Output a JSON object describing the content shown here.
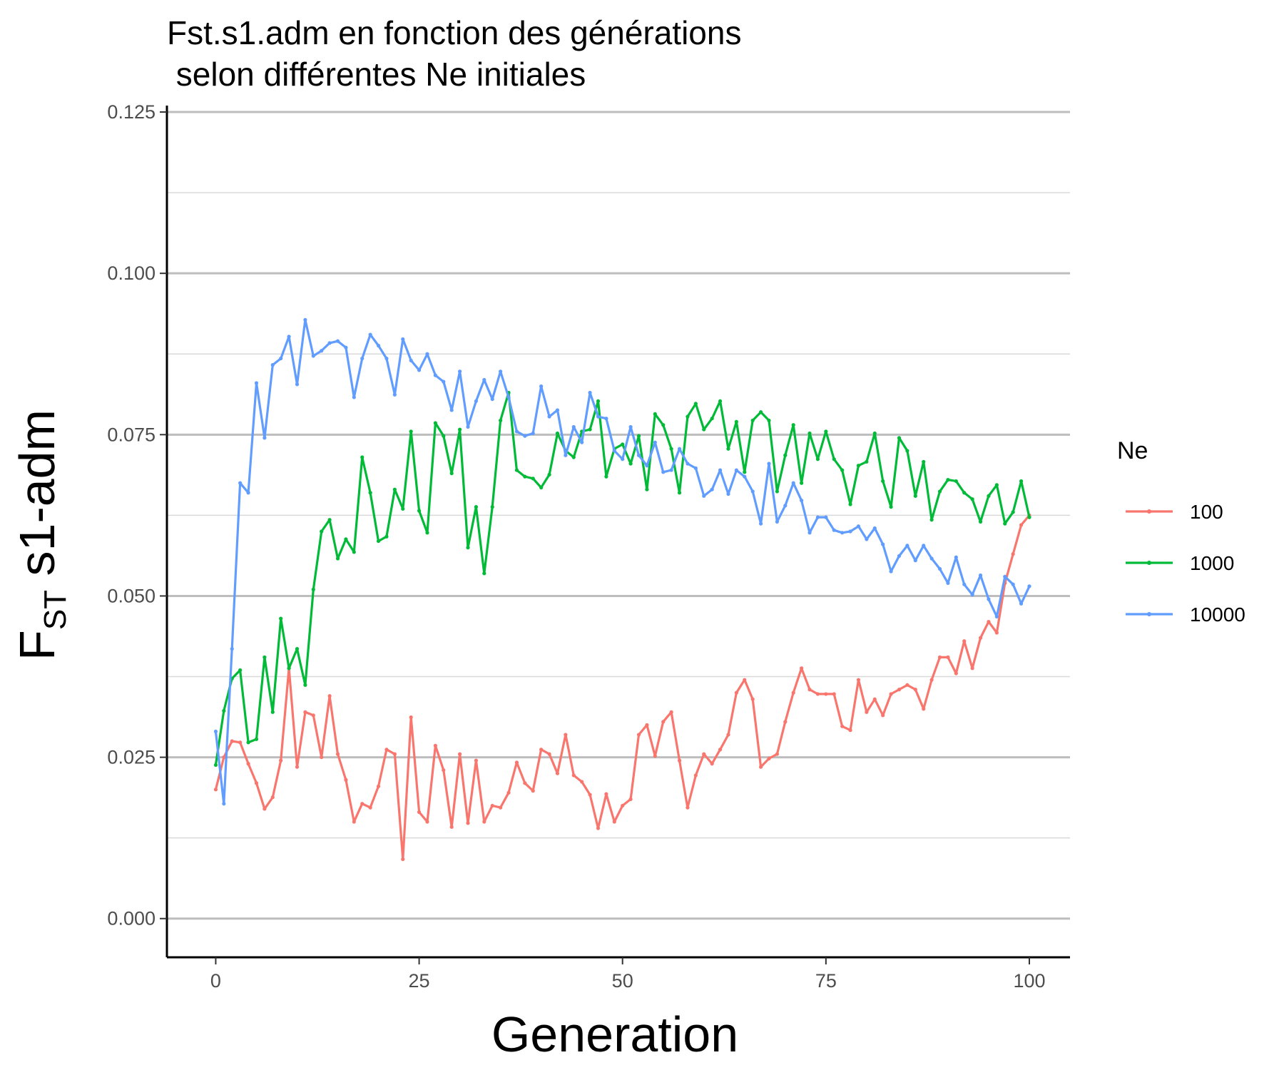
{
  "chart_data": {
    "type": "line",
    "title_line1": "Fst.s1.adm en fonction des générations",
    "title_line2": " selon différentes Ne initiales",
    "xlabel": "Generation",
    "ylabel_main": "F",
    "ylabel_sub": "ST",
    "ylabel_rest": " s1-adm",
    "xlim": [
      -6,
      105
    ],
    "ylim": [
      -0.006,
      0.126
    ],
    "x_ticks": [
      0,
      25,
      50,
      75,
      100
    ],
    "x_tick_labels": [
      "0",
      "25",
      "50",
      "75",
      "100"
    ],
    "y_ticks": [
      0,
      0.025,
      0.05,
      0.075,
      0.1,
      0.125
    ],
    "y_tick_labels": [
      "0.000",
      "0.025",
      "0.050",
      "0.075",
      "0.100",
      "0.125"
    ],
    "grid_major_y": true,
    "grid_minor_y": true,
    "legend_title": "Ne",
    "legend_position": "right",
    "series": [
      {
        "name": "100",
        "color": "#F8766D",
        "values": [
          0.02,
          0.025,
          0.0275,
          0.0273,
          0.024,
          0.021,
          0.017,
          0.0188,
          0.0245,
          0.0388,
          0.0235,
          0.032,
          0.0315,
          0.025,
          0.0345,
          0.0255,
          0.0215,
          0.015,
          0.0178,
          0.0172,
          0.0205,
          0.0262,
          0.0255,
          0.0092,
          0.0312,
          0.0165,
          0.015,
          0.0268,
          0.023,
          0.0142,
          0.0255,
          0.0148,
          0.0245,
          0.015,
          0.0175,
          0.0172,
          0.0195,
          0.0242,
          0.021,
          0.0198,
          0.0262,
          0.0255,
          0.0225,
          0.0285,
          0.0222,
          0.0212,
          0.0192,
          0.014,
          0.0193,
          0.015,
          0.0175,
          0.0185,
          0.0285,
          0.03,
          0.0252,
          0.0305,
          0.032,
          0.0245,
          0.0172,
          0.0222,
          0.0255,
          0.024,
          0.0262,
          0.0285,
          0.035,
          0.037,
          0.034,
          0.0235,
          0.0248,
          0.0255,
          0.0305,
          0.035,
          0.0388,
          0.0355,
          0.0348,
          0.0348,
          0.0348,
          0.0298,
          0.0292,
          0.037,
          0.032,
          0.034,
          0.0315,
          0.0348,
          0.0355,
          0.0362,
          0.0355,
          0.0325,
          0.037,
          0.0405,
          0.0405,
          0.038,
          0.043,
          0.0388,
          0.0435,
          0.046,
          0.0443,
          0.052,
          0.0565,
          0.061,
          0.0625
        ]
      },
      {
        "name": "1000",
        "color": "#00BA38",
        "values": [
          0.0238,
          0.0322,
          0.0372,
          0.0385,
          0.0273,
          0.0278,
          0.0405,
          0.032,
          0.0465,
          0.0388,
          0.0418,
          0.0362,
          0.051,
          0.06,
          0.0618,
          0.0558,
          0.0588,
          0.0568,
          0.0715,
          0.066,
          0.0585,
          0.0592,
          0.0665,
          0.0635,
          0.0755,
          0.0632,
          0.0598,
          0.0768,
          0.0748,
          0.069,
          0.0758,
          0.0575,
          0.0638,
          0.0535,
          0.0638,
          0.0772,
          0.0815,
          0.0695,
          0.0685,
          0.0682,
          0.0668,
          0.0688,
          0.0752,
          0.0725,
          0.0715,
          0.0755,
          0.0758,
          0.0802,
          0.0685,
          0.0728,
          0.0735,
          0.0705,
          0.0748,
          0.0665,
          0.0782,
          0.0765,
          0.0728,
          0.066,
          0.0778,
          0.0798,
          0.0758,
          0.0775,
          0.0802,
          0.0728,
          0.077,
          0.0692,
          0.0772,
          0.0785,
          0.0772,
          0.0662,
          0.0718,
          0.0765,
          0.0675,
          0.0752,
          0.0712,
          0.0755,
          0.0712,
          0.0695,
          0.0642,
          0.0702,
          0.0708,
          0.0752,
          0.0678,
          0.0638,
          0.0745,
          0.0725,
          0.0655,
          0.0708,
          0.0618,
          0.0662,
          0.068,
          0.0678,
          0.066,
          0.065,
          0.0615,
          0.0655,
          0.0672,
          0.0612,
          0.063,
          0.0678,
          0.0622
        ]
      },
      {
        "name": "10000",
        "color": "#619CFF",
        "values": [
          0.029,
          0.0178,
          0.0418,
          0.0675,
          0.066,
          0.083,
          0.0745,
          0.0858,
          0.0868,
          0.0902,
          0.0828,
          0.0928,
          0.0872,
          0.088,
          0.0892,
          0.0895,
          0.0885,
          0.0808,
          0.0868,
          0.0905,
          0.0888,
          0.0868,
          0.0812,
          0.0898,
          0.0865,
          0.085,
          0.0875,
          0.0842,
          0.0832,
          0.0788,
          0.0848,
          0.0762,
          0.0802,
          0.0835,
          0.0805,
          0.0848,
          0.0808,
          0.0755,
          0.0748,
          0.0752,
          0.0825,
          0.0778,
          0.0788,
          0.0718,
          0.0762,
          0.0738,
          0.0815,
          0.0778,
          0.0775,
          0.0725,
          0.0712,
          0.0762,
          0.0718,
          0.0702,
          0.0738,
          0.0692,
          0.0695,
          0.0728,
          0.0705,
          0.0698,
          0.0655,
          0.0665,
          0.0695,
          0.0658,
          0.0695,
          0.0685,
          0.0662,
          0.0612,
          0.0705,
          0.0615,
          0.064,
          0.0675,
          0.0648,
          0.0598,
          0.0622,
          0.0622,
          0.0602,
          0.0598,
          0.06,
          0.0608,
          0.0588,
          0.0605,
          0.058,
          0.0538,
          0.0562,
          0.0578,
          0.0555,
          0.0578,
          0.0558,
          0.0542,
          0.052,
          0.056,
          0.0518,
          0.0502,
          0.0532,
          0.0495,
          0.0468,
          0.053,
          0.0518,
          0.0488,
          0.0515
        ]
      }
    ]
  }
}
